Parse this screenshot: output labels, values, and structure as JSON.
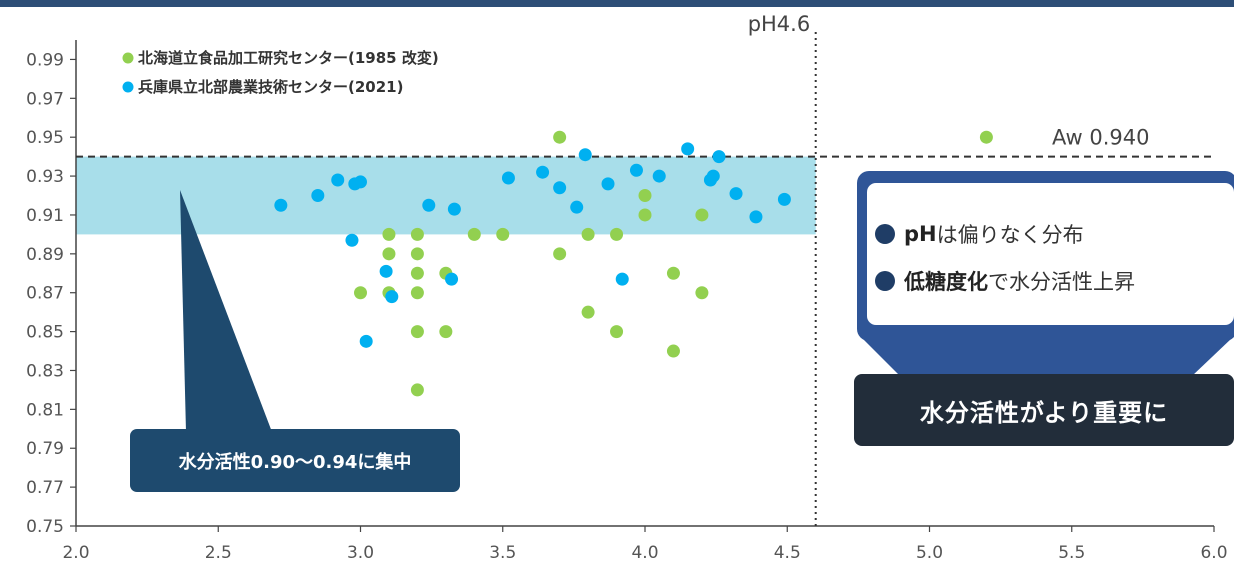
{
  "chart_data": {
    "type": "scatter",
    "x_ticks": [
      "2.0",
      "2.5",
      "3.0",
      "3.5",
      "4.0",
      "4.5",
      "5.0",
      "5.5",
      "6.0"
    ],
    "y_ticks": [
      "0.99",
      "0.97",
      "0.95",
      "0.93",
      "0.91",
      "0.89",
      "0.87",
      "0.85",
      "0.83",
      "0.81",
      "0.79",
      "0.77",
      "0.75"
    ],
    "xlim": [
      2.0,
      6.0
    ],
    "ylim": [
      0.75,
      1.0
    ],
    "grid": false,
    "legend": {
      "placement": "top-left"
    },
    "series": [
      {
        "name": "北海道立食品加工研究センター(1985 改変)",
        "color": "#92d050",
        "points": [
          [
            3.0,
            0.87
          ],
          [
            3.1,
            0.9
          ],
          [
            3.1,
            0.89
          ],
          [
            3.1,
            0.87
          ],
          [
            3.2,
            0.9
          ],
          [
            3.2,
            0.89
          ],
          [
            3.2,
            0.88
          ],
          [
            3.2,
            0.87
          ],
          [
            3.2,
            0.85
          ],
          [
            3.2,
            0.82
          ],
          [
            3.3,
            0.88
          ],
          [
            3.3,
            0.85
          ],
          [
            3.4,
            0.9
          ],
          [
            3.5,
            0.9
          ],
          [
            3.7,
            0.95
          ],
          [
            3.7,
            0.89
          ],
          [
            3.8,
            0.9
          ],
          [
            3.8,
            0.86
          ],
          [
            3.9,
            0.9
          ],
          [
            3.9,
            0.85
          ],
          [
            4.0,
            0.92
          ],
          [
            4.0,
            0.91
          ],
          [
            4.1,
            0.88
          ],
          [
            4.1,
            0.84
          ],
          [
            4.2,
            0.91
          ],
          [
            4.2,
            0.87
          ],
          [
            5.2,
            0.95
          ]
        ]
      },
      {
        "name": "兵庫県立北部農業技術センター(2021)",
        "color": "#00b0f0",
        "points": [
          [
            2.72,
            0.915
          ],
          [
            2.85,
            0.92
          ],
          [
            2.92,
            0.928
          ],
          [
            2.98,
            0.926
          ],
          [
            3.0,
            0.927
          ],
          [
            2.97,
            0.897
          ],
          [
            3.02,
            0.845
          ],
          [
            3.09,
            0.881
          ],
          [
            3.11,
            0.868
          ],
          [
            3.24,
            0.915
          ],
          [
            3.32,
            0.877
          ],
          [
            3.33,
            0.913
          ],
          [
            3.52,
            0.929
          ],
          [
            3.64,
            0.932
          ],
          [
            3.7,
            0.924
          ],
          [
            3.76,
            0.914
          ],
          [
            3.79,
            0.941
          ],
          [
            3.87,
            0.926
          ],
          [
            3.92,
            0.877
          ],
          [
            3.97,
            0.933
          ],
          [
            4.05,
            0.93
          ],
          [
            4.15,
            0.944
          ],
          [
            4.23,
            0.928
          ],
          [
            4.24,
            0.93
          ],
          [
            4.26,
            0.94
          ],
          [
            4.32,
            0.921
          ],
          [
            4.39,
            0.909
          ],
          [
            4.49,
            0.918
          ]
        ]
      }
    ],
    "reference_lines": [
      {
        "axis": "x",
        "value": 4.6,
        "style": "dotted",
        "label": "pH4.6"
      },
      {
        "axis": "y",
        "value": 0.94,
        "style": "dashed",
        "label": "Aw 0.940"
      }
    ],
    "highlight_band": {
      "y_from": 0.9,
      "y_to": 0.94,
      "x_from": 2.0,
      "x_to": 4.6,
      "color": "#a8deea"
    }
  },
  "callout_point": {
    "text": "水分活性0.90～0.94に集中"
  },
  "info_box": {
    "line1": {
      "strong": "pH",
      "rest": "は偏りなく分布"
    },
    "line2": {
      "strong": "低糖度化",
      "rest": "で水分活性上昇"
    }
  },
  "conclusion": {
    "text": "水分活性がより重要に"
  }
}
